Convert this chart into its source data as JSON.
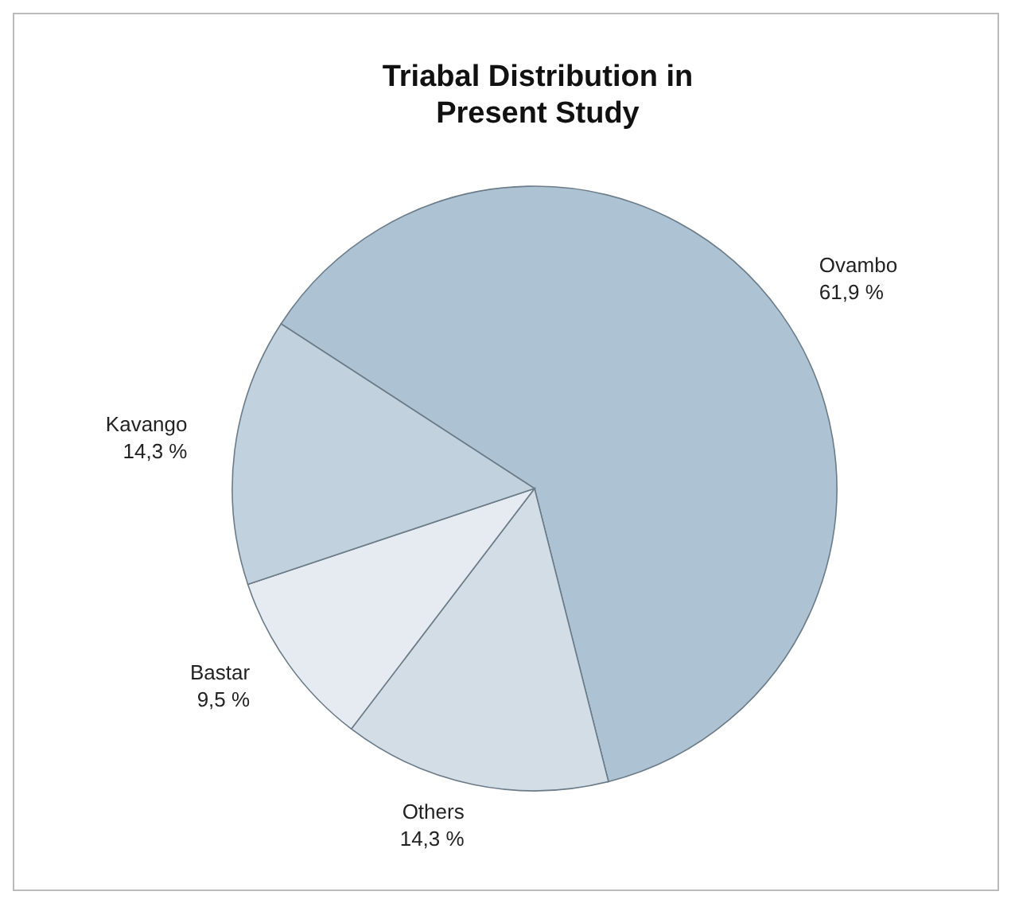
{
  "chart_data": {
    "type": "pie",
    "title": "Triabal Distribution in Present Study",
    "categories": [
      "Ovambo",
      "Others",
      "Bastar",
      "Kavango"
    ],
    "values": [
      61.9,
      14.3,
      9.5,
      14.3
    ],
    "value_labels": [
      "61,9 %",
      "14,3 %",
      "9,5 %",
      "14,3 %"
    ],
    "colors": [
      "#adc3d3",
      "#d3dde6",
      "#e6ebf1",
      "#c1d2de"
    ],
    "legend": false
  }
}
